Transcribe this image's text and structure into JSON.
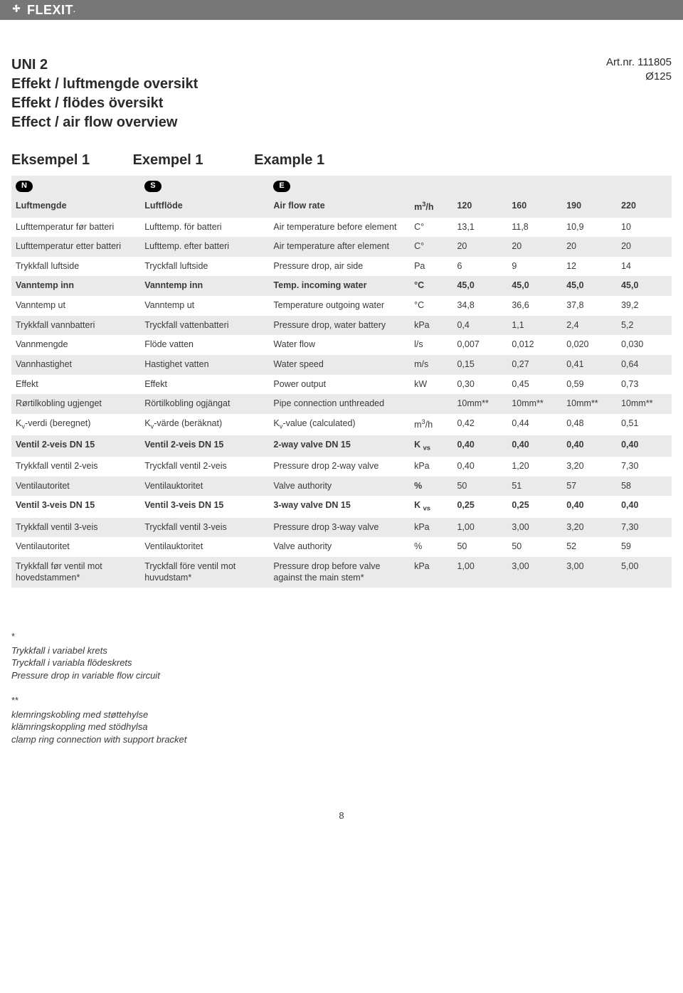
{
  "logo_text": "FLEXIT",
  "header": {
    "line1": "UNI 2",
    "line2": "Effekt / luftmengde oversikt",
    "line3": "Effekt / flödes översikt",
    "line4": "Effect / air flow overview",
    "artnr_line1": "Art.nr. 111805",
    "artnr_line2": "Ø125"
  },
  "example_labels": {
    "n": "Eksempel 1",
    "s": "Exempel 1",
    "e": "Example 1"
  },
  "lang_badges": {
    "n": "N",
    "s": "S",
    "e": "E"
  },
  "table": {
    "rows": [
      {
        "bold": true,
        "shaded": true,
        "n": "Luftmengde",
        "s": "Luftflöde",
        "e_html": "Air flow rate",
        "u_html": "m<sup>3</sup>/h",
        "v": [
          "120",
          "160",
          "190",
          "220"
        ]
      },
      {
        "bold": false,
        "shaded": false,
        "n": "Lufttemperatur før batteri",
        "s": "Lufttemp. för batteri",
        "e_html": "Air temperature before element",
        "u_html": "C°",
        "v": [
          "13,1",
          "11,8",
          "10,9",
          "10"
        ]
      },
      {
        "bold": false,
        "shaded": true,
        "n": "Lufttemperatur etter batteri",
        "s": "Lufttemp. efter batteri",
        "e_html": "Air temperature after element",
        "u_html": "C°",
        "v": [
          "20",
          "20",
          "20",
          "20"
        ]
      },
      {
        "bold": false,
        "shaded": false,
        "n": "Trykkfall luftside",
        "s": "Tryckfall luftside",
        "e_html": "Pressure drop, air side",
        "u_html": "Pa",
        "v": [
          "6",
          "9",
          "12",
          "14"
        ]
      },
      {
        "bold": true,
        "shaded": true,
        "n": "Vanntemp inn",
        "s": "Vanntemp inn",
        "e_html": "Temp. incoming water",
        "u_html": "°C",
        "v": [
          "45,0",
          "45,0",
          "45,0",
          "45,0"
        ]
      },
      {
        "bold": false,
        "shaded": false,
        "n": "Vanntemp ut",
        "s": "Vanntemp ut",
        "e_html": "Temperature outgoing water",
        "u_html": "°C",
        "v": [
          "34,8",
          "36,6",
          "37,8",
          "39,2"
        ]
      },
      {
        "bold": false,
        "shaded": true,
        "n": "Trykkfall vannbatteri",
        "s": "Tryckfall vattenbatteri",
        "e_html": "Pressure drop, water battery",
        "u_html": "kPa",
        "v": [
          "0,4",
          "1,1",
          "2,4",
          "5,2"
        ]
      },
      {
        "bold": false,
        "shaded": false,
        "n": "Vannmengde",
        "s": "Flöde vatten",
        "e_html": "Water flow",
        "u_html": "l/s",
        "v": [
          "0,007",
          "0,012",
          "0,020",
          "0,030"
        ]
      },
      {
        "bold": false,
        "shaded": true,
        "n": "Vannhastighet",
        "s": "Hastighet vatten",
        "e_html": "Water speed",
        "u_html": "m/s",
        "v": [
          "0,15",
          "0,27",
          "0,41",
          "0,64"
        ]
      },
      {
        "bold": false,
        "shaded": false,
        "n": "Effekt",
        "s": "Effekt",
        "e_html": "Power output",
        "u_html": "kW",
        "v": [
          "0,30",
          "0,45",
          "0,59",
          "0,73"
        ]
      },
      {
        "bold": false,
        "shaded": true,
        "n": "Rørtilkobling ugjenget",
        "s": "Rörtilkobling ogjängat",
        "e_html": "Pipe connection unthreaded",
        "u_html": "",
        "v": [
          "10mm**",
          "10mm**",
          "10mm**",
          "10mm**"
        ]
      },
      {
        "bold": false,
        "shaded": false,
        "n_html": "K<sub>v</sub>-verdi (beregnet)",
        "s_html": "K<sub>v</sub>-värde (beräknat)",
        "e_html": "K<sub>v</sub>-value (calculated)",
        "u_html": "m<sup>3</sup>/h",
        "v": [
          "0,42",
          "0,44",
          "0,48",
          "0,51"
        ]
      },
      {
        "bold": true,
        "shaded": true,
        "n": "Ventil 2-veis DN 15",
        "s": "Ventil 2-veis DN 15",
        "e_html": "2-way valve DN 15",
        "u_html": "K <sub>vs</sub>",
        "v": [
          "0,40",
          "0,40",
          "0,40",
          "0,40"
        ]
      },
      {
        "bold": false,
        "shaded": false,
        "n": "Trykkfall ventil 2-veis",
        "s": "Tryckfall ventil 2-veis",
        "e_html": "Pressure drop 2-way valve",
        "u_html": "kPa",
        "v": [
          "0,40",
          "1,20",
          "3,20",
          "7,30"
        ]
      },
      {
        "bold": false,
        "shaded": true,
        "n": "Ventilautoritet",
        "s": "Ventilauktoritet",
        "e_html": "Valve authority",
        "u_html": "<b>%</b>",
        "v": [
          "50",
          "51",
          "57",
          "58"
        ]
      },
      {
        "bold": true,
        "shaded": false,
        "n": "Ventil 3-veis DN 15",
        "s": "Ventil 3-veis DN 15",
        "e_html": "3-way valve DN 15",
        "u_html": "K <sub>vs</sub>",
        "v": [
          "0,25",
          "0,25",
          "0,40",
          "0,40"
        ]
      },
      {
        "bold": false,
        "shaded": true,
        "n": "Trykkfall ventil 3-veis",
        "s": "Tryckfall ventil 3-veis",
        "e_html": "Pressure drop 3-way valve",
        "u_html": "kPa",
        "v": [
          "1,00",
          "3,00",
          "3,20",
          "7,30"
        ]
      },
      {
        "bold": false,
        "shaded": false,
        "n": "Ventilautoritet",
        "s": "Ventilauktoritet",
        "e_html": "Valve authority",
        "u_html": "%",
        "v": [
          "50",
          "50",
          "52",
          "59"
        ]
      },
      {
        "bold": false,
        "shaded": true,
        "n": "Trykkfall før ventil mot hovedstammen*",
        "s": "Tryckfall före ventil mot huvudstam*",
        "e_html": "Pressure drop before valve against the main stem*",
        "u_html": "kPa",
        "v": [
          "1,00",
          "3,00",
          "3,00",
          "5,00"
        ]
      }
    ]
  },
  "footnotes": {
    "star1_mark": "*",
    "star1_lines": [
      "Trykkfall i variabel krets",
      "Tryckfall i variabla flödeskrets",
      "Pressure drop in variable flow circuit"
    ],
    "star2_mark": "**",
    "star2_lines": [
      "klemringskobling med støttehylse",
      "klämringskoppling med stödhylsa",
      "clamp ring connection with support bracket"
    ]
  },
  "page_number": "8",
  "colors": {
    "topbar_bg": "#777777",
    "row_shade": "#eaeaea",
    "text": "#3a3a3a"
  }
}
